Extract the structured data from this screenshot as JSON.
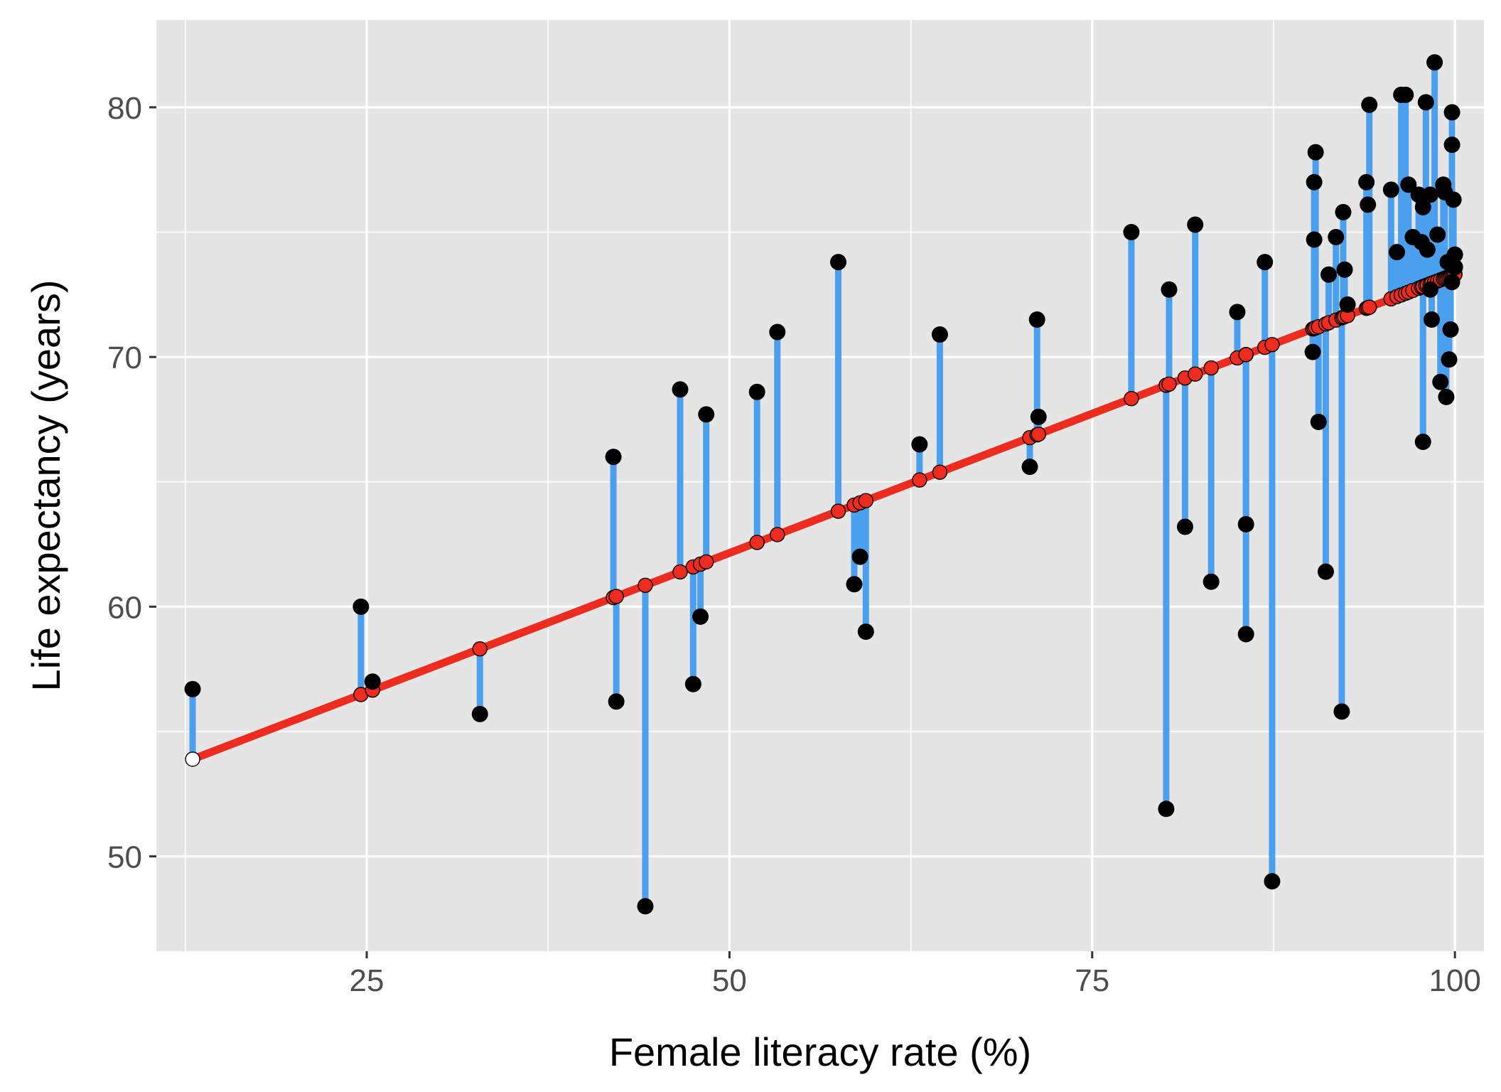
{
  "chart_data": {
    "type": "scatter",
    "title": "",
    "xlabel": "Female literacy rate (%)",
    "ylabel": "Life expectancy (years)",
    "xlim": [
      10.5,
      102
    ],
    "ylim": [
      46.2,
      83.5
    ],
    "x_ticks": [
      25,
      50,
      75,
      100
    ],
    "x_tick_labels": [
      "25",
      "50",
      "75",
      "100"
    ],
    "y_ticks": [
      50,
      60,
      70,
      80
    ],
    "y_tick_labels": [
      "50",
      "60",
      "70",
      "80"
    ],
    "x_minor_ticks": [
      12.5,
      37.5,
      62.5,
      87.5
    ],
    "y_minor_ticks": [
      55,
      65,
      75
    ],
    "grid": true,
    "legend": "none",
    "regression_line": {
      "x_start": 13,
      "x_end": 100,
      "slope": 0.2232,
      "intercept": 50.99
    },
    "colors": {
      "panel_background": "#e5e5e5",
      "grid": "#ffffff",
      "residual_segment": "#4aa0ee",
      "regression_line": "#ee2b1f",
      "observed_point": "#000000",
      "fitted_point_fill": "#ee2b1f",
      "fitted_point_stroke": "#000000"
    },
    "series": [
      {
        "role": "observed",
        "points": [
          [
            13.0,
            56.7
          ],
          [
            24.6,
            60.0
          ],
          [
            25.4,
            57.0
          ],
          [
            32.8,
            55.7
          ],
          [
            42.0,
            66.0
          ],
          [
            42.2,
            56.2
          ],
          [
            44.2,
            48.0
          ],
          [
            46.6,
            68.7
          ],
          [
            47.5,
            56.9
          ],
          [
            48.0,
            59.6
          ],
          [
            48.4,
            67.7
          ],
          [
            51.9,
            68.6
          ],
          [
            53.3,
            71.0
          ],
          [
            57.5,
            73.8
          ],
          [
            58.6,
            60.9
          ],
          [
            59.0,
            62.0
          ],
          [
            59.4,
            59.0
          ],
          [
            63.1,
            66.5
          ],
          [
            64.5,
            70.9
          ],
          [
            70.7,
            65.6
          ],
          [
            71.2,
            71.5
          ],
          [
            71.3,
            67.6
          ],
          [
            77.7,
            75.0
          ],
          [
            80.1,
            51.9
          ],
          [
            80.3,
            72.7
          ],
          [
            81.4,
            63.2
          ],
          [
            82.1,
            75.3
          ],
          [
            83.2,
            61.0
          ],
          [
            85.0,
            71.8
          ],
          [
            85.6,
            58.9
          ],
          [
            85.6,
            63.3
          ],
          [
            86.9,
            73.8
          ],
          [
            87.4,
            49.0
          ],
          [
            90.2,
            70.2
          ],
          [
            90.3,
            74.7
          ],
          [
            90.3,
            77.0
          ],
          [
            90.4,
            78.2
          ],
          [
            90.6,
            67.4
          ],
          [
            91.1,
            61.4
          ],
          [
            91.3,
            73.3
          ],
          [
            91.8,
            74.8
          ],
          [
            92.2,
            55.8
          ],
          [
            92.3,
            75.8
          ],
          [
            92.4,
            73.5
          ],
          [
            92.6,
            72.1
          ],
          [
            93.9,
            77.0
          ],
          [
            94.0,
            76.1
          ],
          [
            94.1,
            80.1
          ],
          [
            95.6,
            76.7
          ],
          [
            96.0,
            74.2
          ],
          [
            96.3,
            80.5
          ],
          [
            96.6,
            80.5
          ],
          [
            96.8,
            76.9
          ],
          [
            97.1,
            74.8
          ],
          [
            97.5,
            76.5
          ],
          [
            97.7,
            74.6
          ],
          [
            97.8,
            76.0
          ],
          [
            97.8,
            66.6
          ],
          [
            98.0,
            80.2
          ],
          [
            98.1,
            74.3
          ],
          [
            98.3,
            76.5
          ],
          [
            98.3,
            72.7
          ],
          [
            98.4,
            71.5
          ],
          [
            98.6,
            81.8
          ],
          [
            98.8,
            74.9
          ],
          [
            99.0,
            69.0
          ],
          [
            99.2,
            76.9
          ],
          [
            99.3,
            76.6
          ],
          [
            99.4,
            68.4
          ],
          [
            99.5,
            73.8
          ],
          [
            99.6,
            69.9
          ],
          [
            99.7,
            71.1
          ],
          [
            99.8,
            79.8
          ],
          [
            99.8,
            78.5
          ],
          [
            99.8,
            73.0
          ],
          [
            99.9,
            76.3
          ],
          [
            100.0,
            74.1
          ],
          [
            100.0,
            73.6
          ]
        ]
      }
    ]
  }
}
